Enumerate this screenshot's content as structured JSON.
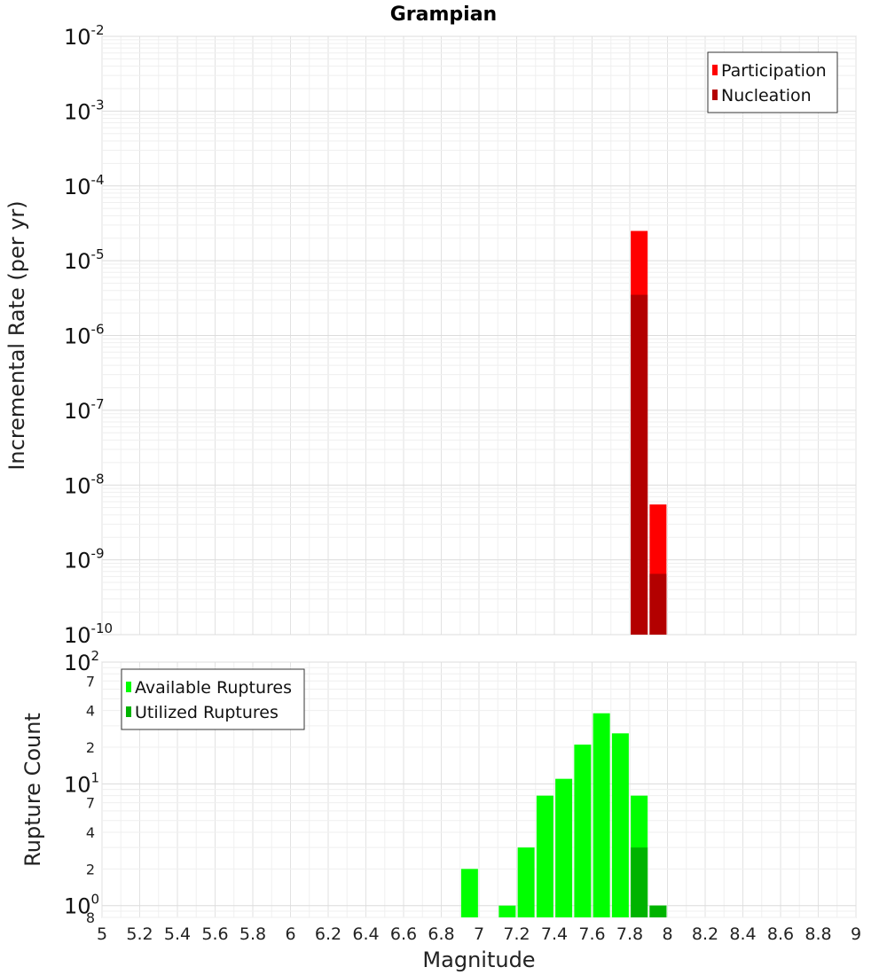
{
  "chart_data": [
    {
      "type": "bar",
      "title": "Grampian",
      "ylabel": "Incremental Rate (per yr)",
      "xlabel": "",
      "yscale": "log",
      "xlim": [
        5,
        9
      ],
      "ylim": [
        1e-10,
        0.01
      ],
      "grid": true,
      "legend_placement": "top-right",
      "y_tick_labels": [
        {
          "value": 0.01,
          "base": "10",
          "exp": "-2"
        },
        {
          "value": 0.001,
          "base": "10",
          "exp": "-3"
        },
        {
          "value": 0.0001,
          "base": "10",
          "exp": "-4"
        },
        {
          "value": 1e-05,
          "base": "10",
          "exp": "-5"
        },
        {
          "value": 1e-06,
          "base": "10",
          "exp": "-6"
        },
        {
          "value": 1e-07,
          "base": "10",
          "exp": "-7"
        },
        {
          "value": 1e-08,
          "base": "10",
          "exp": "-8"
        },
        {
          "value": 1e-09,
          "base": "10",
          "exp": "-9"
        },
        {
          "value": 1e-10,
          "base": "10",
          "exp": "-10"
        }
      ],
      "series": [
        {
          "name": "Participation",
          "color": "#ff0000",
          "x": [
            7.85,
            7.95
          ],
          "values": [
            2.5e-05,
            5.5e-09
          ]
        },
        {
          "name": "Nucleation",
          "color": "#b30000",
          "x": [
            7.85,
            7.95
          ],
          "values": [
            3.5e-06,
            6.5e-10
          ]
        }
      ]
    },
    {
      "type": "bar",
      "title": "",
      "ylabel": "Rupture Count",
      "xlabel": "Magnitude",
      "yscale": "log",
      "xlim": [
        5,
        9
      ],
      "ylim": [
        0.8,
        100
      ],
      "grid": true,
      "legend_placement": "top-left",
      "x_tick_labels": [
        "5",
        "5.2",
        "5.4",
        "5.6",
        "5.8",
        "6",
        "6.2",
        "6.4",
        "6.6",
        "6.8",
        "7",
        "7.2",
        "7.4",
        "7.6",
        "7.8",
        "8",
        "8.2",
        "8.4",
        "8.6",
        "8.8",
        "9"
      ],
      "y_major_labels": [
        {
          "value": 100,
          "base": "10",
          "exp": "2"
        },
        {
          "value": 10,
          "base": "10",
          "exp": "1"
        },
        {
          "value": 1,
          "base": "10",
          "exp": "0"
        }
      ],
      "y_minor_labels": [
        {
          "value": 70,
          "label": "7"
        },
        {
          "value": 40,
          "label": "4"
        },
        {
          "value": 20,
          "label": "2"
        },
        {
          "value": 7,
          "label": "7"
        },
        {
          "value": 4,
          "label": "4"
        },
        {
          "value": 2,
          "label": "2"
        },
        {
          "value": 0.8,
          "label": "8"
        }
      ],
      "series": [
        {
          "name": "Available Ruptures",
          "color": "#00ff00",
          "x": [
            6.95,
            7.15,
            7.25,
            7.35,
            7.45,
            7.55,
            7.65,
            7.75,
            7.85,
            7.95
          ],
          "values": [
            2,
            1,
            3,
            8,
            11,
            21,
            38,
            26,
            8,
            1
          ]
        },
        {
          "name": "Utilized Ruptures",
          "color": "#00b300",
          "x": [
            7.85,
            7.95
          ],
          "values": [
            3,
            1
          ]
        }
      ]
    }
  ]
}
